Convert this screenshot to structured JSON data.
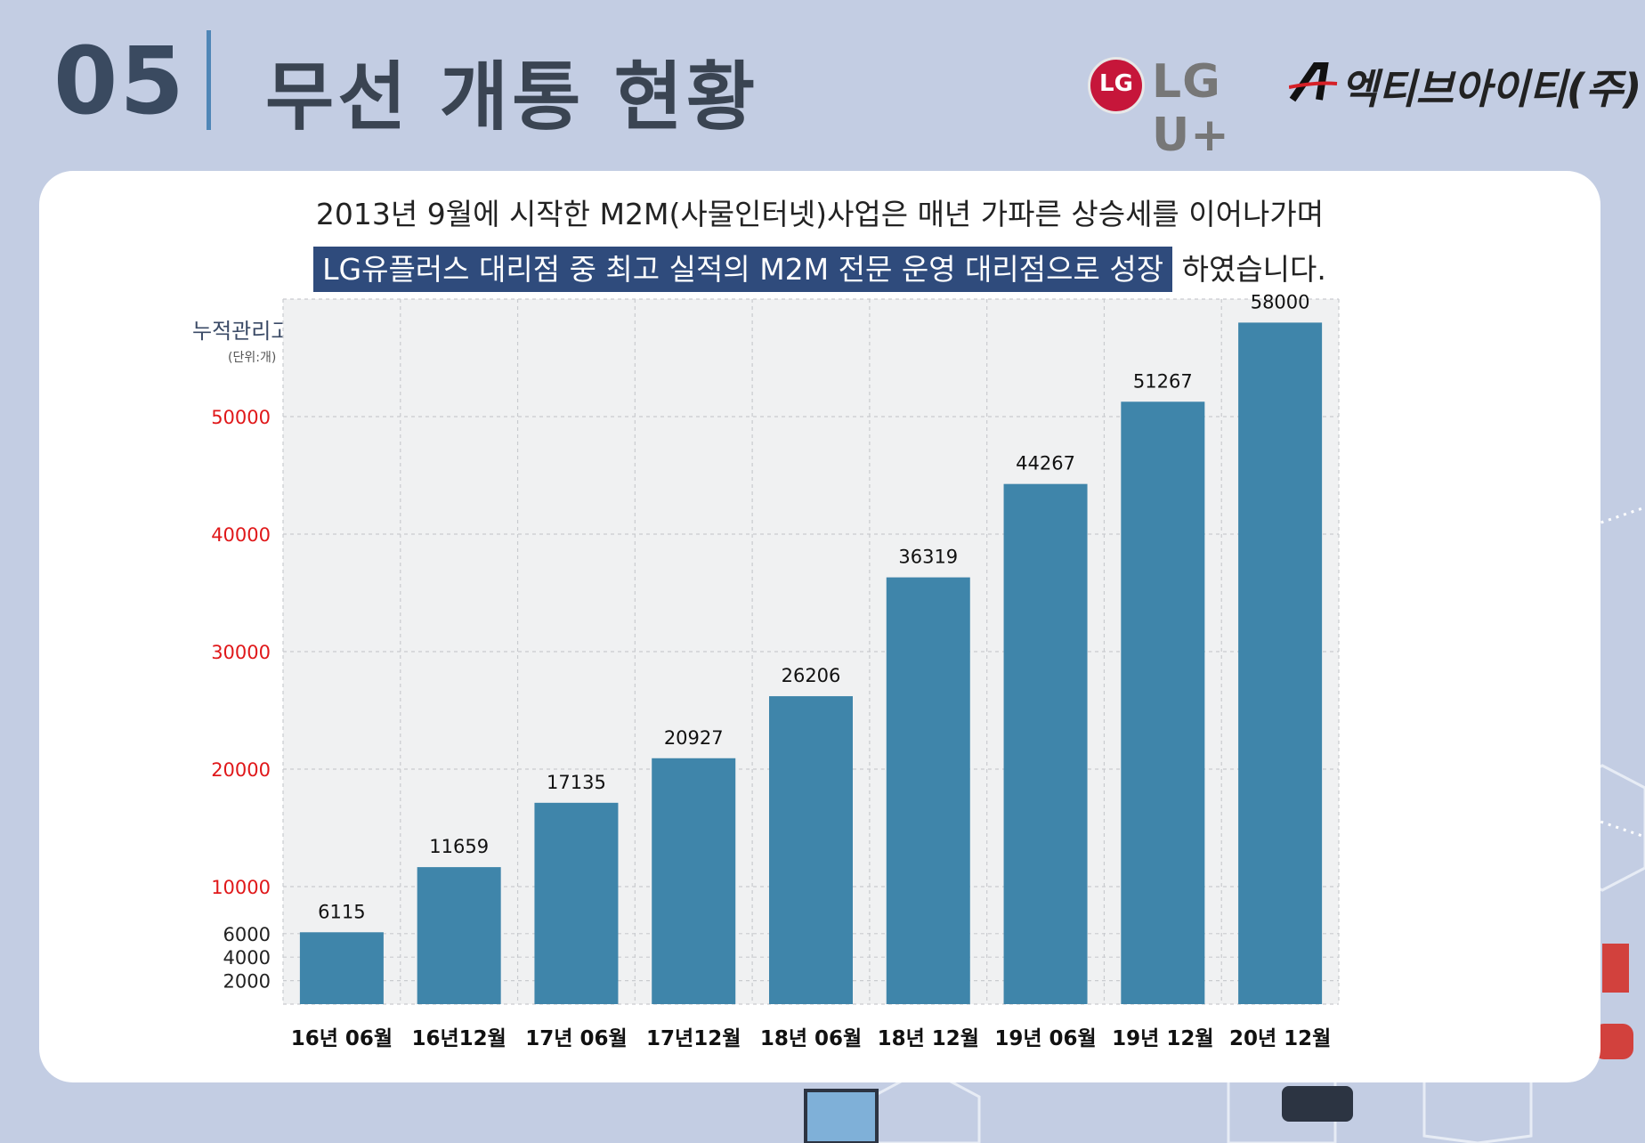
{
  "header": {
    "number": "05",
    "title": "무선 개통 현황",
    "logo_lg_text": "LG U+",
    "logo_lg_mark": "LG",
    "logo_act_text": "엑티브아이티(주)"
  },
  "intro": {
    "line1": "2013년 9월에 시작한 M2M(사물인터넷)사업은 매년 가파른 상승세를 이어나가며",
    "line2_highlight": "LG유플러스 대리점 중 최고 실적의 M2M 전문 운영 대리점으로 성장",
    "line2_rest": "하였습니다."
  },
  "colors": {
    "background": "#c3cde3",
    "bar": "#3f85aa",
    "highlight": "#2f4b7c",
    "tick_red": "#e0181a",
    "plot_bg": "#f0f1f2"
  },
  "chart_data": {
    "type": "bar",
    "ylabel": "누적관리고객 수",
    "unit_label": "(단위:개)",
    "categories": [
      "16년 06월",
      "16년12월",
      "17년 06월",
      "17년12월",
      "18년 06월",
      "18년 12월",
      "19년 06월",
      "19년 12월",
      "20년 12월"
    ],
    "values": [
      6115,
      11659,
      17135,
      20927,
      26206,
      36319,
      44267,
      51267,
      58000
    ],
    "data_labels": [
      "6115",
      "11659",
      "17135",
      "20927",
      "26206",
      "36319",
      "44267",
      "51267",
      "58000"
    ],
    "yticks": [
      {
        "label": "2000",
        "value": 2000,
        "color": "#222222"
      },
      {
        "label": "4000",
        "value": 4000,
        "color": "#222222"
      },
      {
        "label": "6000",
        "value": 6000,
        "color": "#222222"
      },
      {
        "label": "10000",
        "value": 10000,
        "color": "#e0181a"
      },
      {
        "label": "20000",
        "value": 20000,
        "color": "#e0181a"
      },
      {
        "label": "30000",
        "value": 30000,
        "color": "#e0181a"
      },
      {
        "label": "40000",
        "value": 40000,
        "color": "#e0181a"
      },
      {
        "label": "50000",
        "value": 50000,
        "color": "#e0181a"
      }
    ],
    "ylim": [
      0,
      60000
    ],
    "grid": true,
    "legend": "none"
  }
}
